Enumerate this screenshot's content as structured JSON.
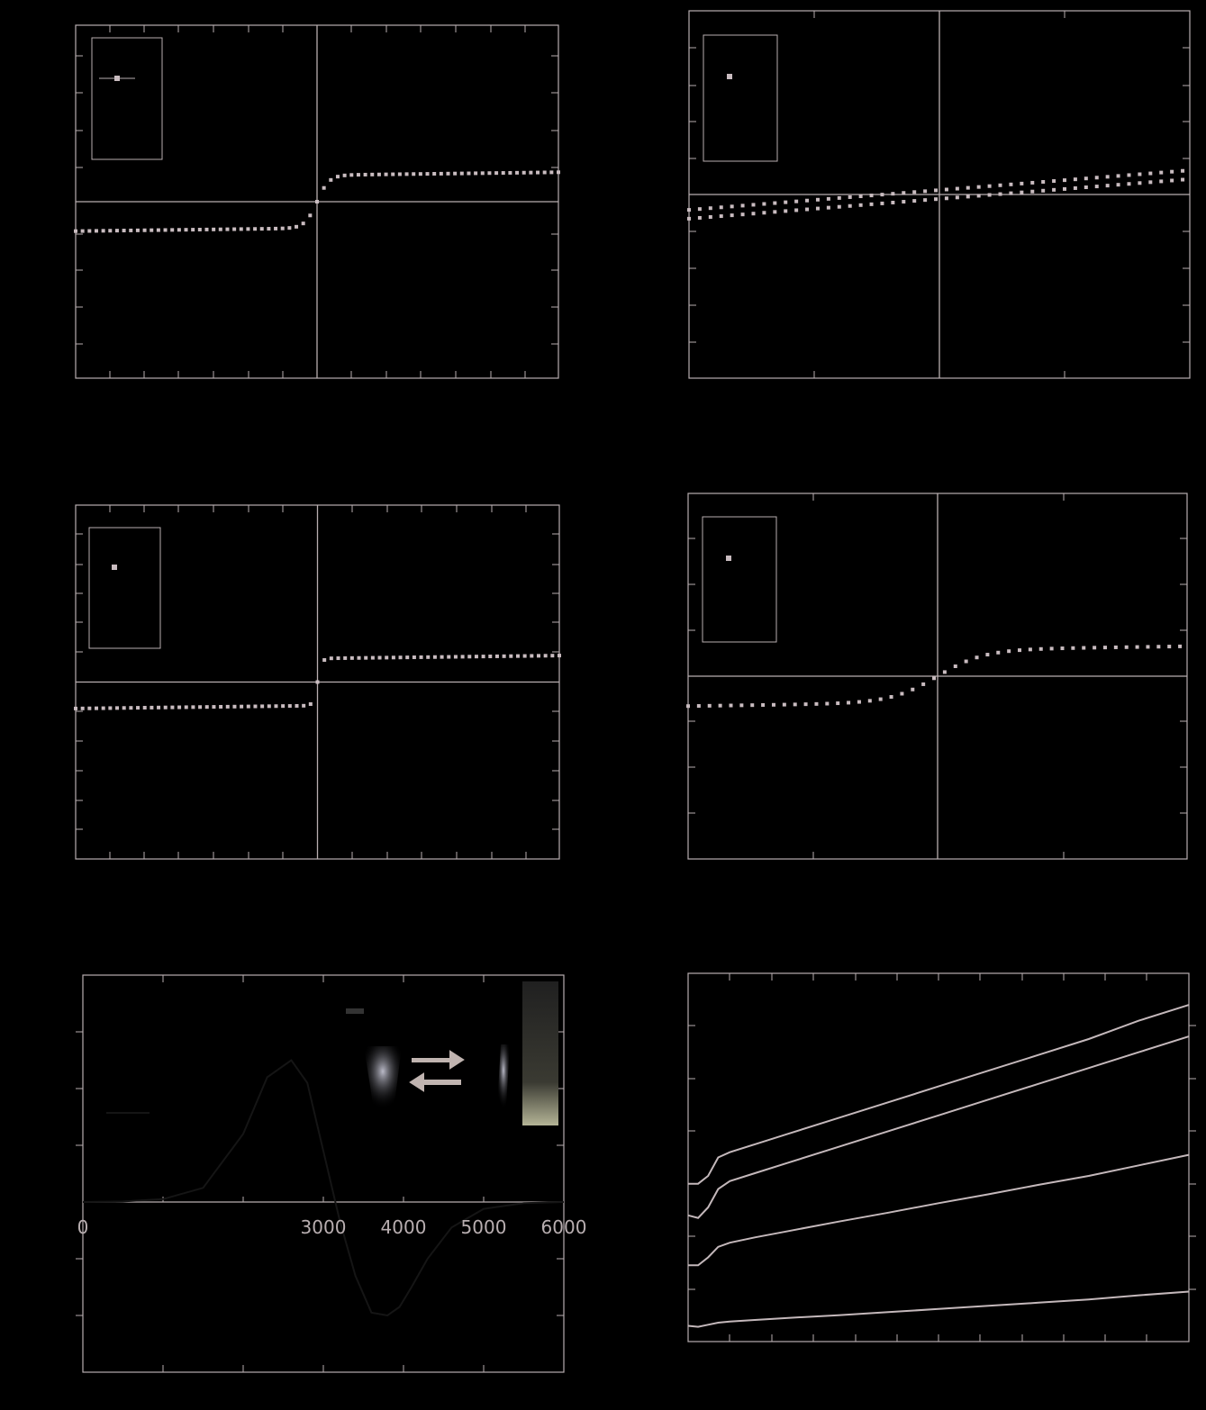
{
  "colors": {
    "background": "#000000",
    "axis": "#b8aeb0",
    "marker": "#c9bcc0",
    "line": "#c4b8bb",
    "dark_line": "#151515",
    "arrow": "#c0b4b0",
    "photo_glow": "#dcdcec",
    "photo_bar": "#b4b496"
  },
  "chart_data": [
    {
      "id": "panel-top-left",
      "type": "scatter",
      "title": "",
      "xlabel": "",
      "ylabel": "",
      "xlim": [
        -7,
        7
      ],
      "ylim": [
        -5,
        5
      ],
      "grid": false,
      "inset": "top-left legend box with one square marker",
      "series": [
        {
          "name": "",
          "shape": "sigmoid",
          "x_range": [
            -7,
            7
          ],
          "x_step": 0.2,
          "saturation": 0.75,
          "width": 0.35,
          "tail_slope": 0.012
        }
      ]
    },
    {
      "id": "panel-top-right",
      "type": "scatter",
      "title": "",
      "xlabel": "",
      "ylabel": "",
      "xlim": [
        -7,
        7
      ],
      "ylim": [
        -5,
        5
      ],
      "grid": false,
      "inset": "top-left legend box with one square marker",
      "series": [
        {
          "name": "",
          "shape": "hysteresis-loop",
          "x_range": [
            -7,
            7
          ],
          "x_step": 0.3,
          "slope": 0.077,
          "loop_offset": 0.12
        }
      ]
    },
    {
      "id": "panel-middle-left",
      "type": "scatter",
      "title": "",
      "xlabel": "",
      "ylabel": "",
      "xlim": [
        -7,
        7
      ],
      "ylim": [
        -6,
        6
      ],
      "grid": false,
      "inset": "top-left legend box with one square marker",
      "series": [
        {
          "name": "",
          "shape": "sigmoid",
          "x_range": [
            -7,
            7
          ],
          "x_step": 0.2,
          "saturation": 0.8,
          "width": 0.12,
          "tail_slope": 0.014
        }
      ]
    },
    {
      "id": "panel-middle-right",
      "type": "scatter",
      "title": "",
      "xlabel": "",
      "ylabel": "",
      "xlim": [
        -7,
        7
      ],
      "ylim": [
        -5,
        5
      ],
      "grid": false,
      "inset": "top-left legend box with one square marker",
      "series": [
        {
          "name": "",
          "shape": "sigmoid",
          "x_range": [
            -7,
            7
          ],
          "x_step": 0.3,
          "saturation": 0.72,
          "width": 1.3,
          "tail_slope": 0.014
        }
      ]
    },
    {
      "id": "panel-bottom-left",
      "type": "line",
      "title": "",
      "xlabel": "",
      "ylabel": "",
      "xlim": [
        0,
        6000
      ],
      "ylim": [
        -3,
        4
      ],
      "grid": false,
      "x_tick_labels": [
        "0",
        "3000",
        "4000",
        "5000",
        "6000"
      ],
      "x": [
        0,
        500,
        1000,
        1500,
        2000,
        2300,
        2600,
        2800,
        3000,
        3200,
        3400,
        3600,
        3800,
        3950,
        4100,
        4300,
        4600,
        5000,
        5500,
        6000
      ],
      "series": [
        {
          "name": "",
          "values": [
            0,
            0.01,
            0.05,
            0.25,
            1.2,
            2.2,
            2.5,
            2.1,
            0.9,
            -0.3,
            -1.3,
            -1.95,
            -2.0,
            -1.85,
            -1.5,
            -1.0,
            -0.45,
            -0.12,
            -0.02,
            0
          ]
        }
      ],
      "inset": "photograph of two vials with forward and reverse arrows"
    },
    {
      "id": "panel-bottom-right",
      "type": "line",
      "title": "",
      "xlabel": "",
      "ylabel": "",
      "xlim": [
        0,
        300
      ],
      "ylim": [
        0,
        7
      ],
      "grid": false,
      "x": [
        0,
        6,
        12,
        18,
        25,
        40,
        60,
        90,
        120,
        150,
        180,
        210,
        240,
        270,
        300
      ],
      "series": [
        {
          "name": "",
          "values": [
            3.0,
            3.0,
            3.15,
            3.5,
            3.6,
            3.75,
            3.95,
            4.25,
            4.55,
            4.85,
            5.15,
            5.45,
            5.75,
            6.1,
            6.4
          ]
        },
        {
          "name": "",
          "values": [
            2.4,
            2.35,
            2.55,
            2.9,
            3.05,
            3.2,
            3.4,
            3.7,
            4.0,
            4.3,
            4.6,
            4.9,
            5.2,
            5.5,
            5.8
          ]
        },
        {
          "name": "",
          "values": [
            1.45,
            1.45,
            1.6,
            1.8,
            1.88,
            1.98,
            2.1,
            2.28,
            2.45,
            2.63,
            2.8,
            2.98,
            3.15,
            3.35,
            3.55
          ]
        },
        {
          "name": "",
          "values": [
            0.3,
            0.28,
            0.32,
            0.36,
            0.38,
            0.41,
            0.45,
            0.5,
            0.56,
            0.62,
            0.68,
            0.74,
            0.8,
            0.88,
            0.95
          ]
        }
      ]
    }
  ]
}
